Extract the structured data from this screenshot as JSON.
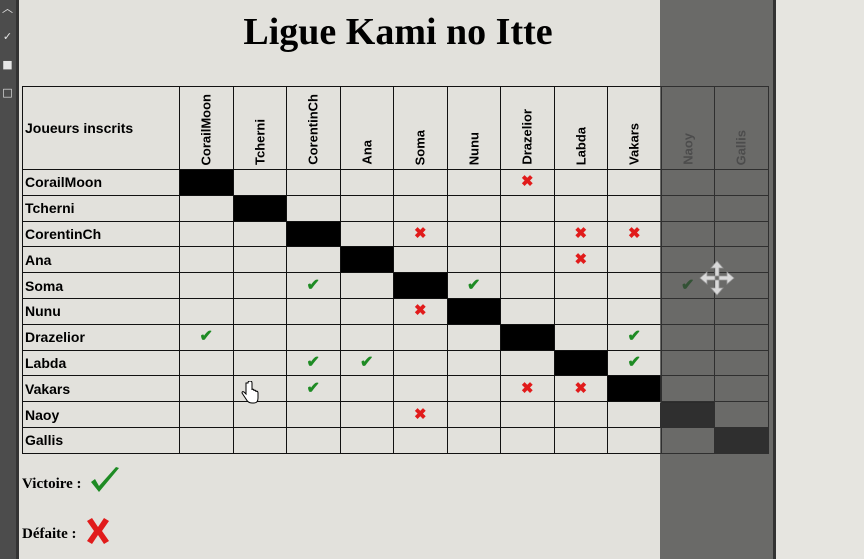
{
  "title": "Ligue Kami no Itte",
  "corner_label": "Joueurs inscrits",
  "columns": [
    "CorailMoon",
    "Tcherni",
    "CorentinCh",
    "Ana",
    "Soma",
    "Nunu",
    "Drazelior",
    "Labda",
    "Vakars",
    "Naoy",
    "Gallis"
  ],
  "rows": [
    {
      "player": "CorailMoon",
      "cells": [
        "diag",
        "",
        "",
        "",
        "",
        "",
        "loss",
        "",
        "",
        "",
        ""
      ]
    },
    {
      "player": "Tcherni",
      "cells": [
        "",
        "diag",
        "",
        "",
        "",
        "",
        "",
        "",
        "",
        "",
        ""
      ]
    },
    {
      "player": "CorentinCh",
      "cells": [
        "",
        "",
        "diag",
        "",
        "loss",
        "",
        "",
        "loss",
        "loss",
        "",
        ""
      ]
    },
    {
      "player": "Ana",
      "cells": [
        "",
        "",
        "",
        "diag",
        "",
        "",
        "",
        "loss",
        "",
        "",
        ""
      ]
    },
    {
      "player": "Soma",
      "cells": [
        "",
        "",
        "win",
        "",
        "diag",
        "win",
        "",
        "",
        "",
        "win",
        ""
      ]
    },
    {
      "player": "Nunu",
      "cells": [
        "",
        "",
        "",
        "",
        "loss",
        "diag",
        "",
        "",
        "",
        "",
        ""
      ]
    },
    {
      "player": "Drazelior",
      "cells": [
        "win",
        "",
        "",
        "",
        "",
        "",
        "diag",
        "",
        "win",
        "",
        ""
      ]
    },
    {
      "player": "Labda",
      "cells": [
        "",
        "",
        "win",
        "win",
        "",
        "",
        "",
        "diag",
        "win",
        "",
        ""
      ]
    },
    {
      "player": "Vakars",
      "cells": [
        "",
        "",
        "win",
        "",
        "",
        "",
        "loss",
        "loss",
        "diag",
        "",
        ""
      ]
    },
    {
      "player": "Naoy",
      "cells": [
        "",
        "",
        "",
        "",
        "loss",
        "",
        "",
        "",
        "",
        "diag",
        ""
      ]
    },
    {
      "player": "Gallis",
      "cells": [
        "",
        "",
        "",
        "",
        "",
        "",
        "",
        "",
        "",
        "",
        "diag"
      ]
    }
  ],
  "legend": {
    "win_label": "Victoire :",
    "loss_label": "Défaite :"
  },
  "marks": {
    "win": "✔",
    "loss": "✖"
  },
  "colors": {
    "win": "#1e8b24",
    "loss": "#e11b1b",
    "diagonal": "#000000"
  },
  "icons": {
    "move": "move-arrows-icon",
    "cursor": "hand-cursor-icon"
  }
}
